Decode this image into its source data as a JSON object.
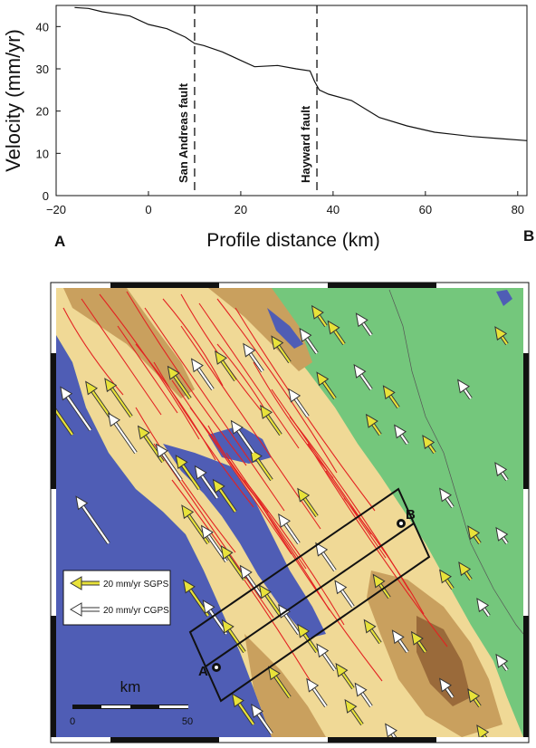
{
  "chart_data": [
    {
      "type": "line",
      "ylabel": "Velocity (mm/yr)",
      "xlabel": "Profile distance (km)",
      "xlim": [
        -20,
        82
      ],
      "ylim": [
        0,
        45
      ],
      "xticks": [
        -20,
        0,
        20,
        40,
        60,
        80
      ],
      "yticks": [
        0,
        10,
        20,
        30,
        40
      ],
      "grid": false,
      "endpoint_labels": {
        "start": "A",
        "end": "B"
      },
      "annotations": [
        {
          "x": 10,
          "text": "San Andreas fault"
        },
        {
          "x": 36.5,
          "text": "Hayward fault"
        }
      ],
      "series": [
        {
          "x": [
            -16,
            -13,
            -10,
            -4,
            0,
            4,
            8,
            10,
            12,
            16,
            20,
            23,
            28,
            32,
            35,
            36,
            37,
            39,
            44,
            50,
            56,
            62,
            66,
            70,
            76,
            82
          ],
          "values": [
            44.5,
            44.3,
            43.5,
            42.5,
            40.5,
            39.5,
            37.5,
            36,
            35.5,
            34,
            32,
            30.5,
            30.8,
            30,
            29.5,
            27,
            25,
            24,
            22.5,
            18.5,
            16.5,
            15,
            14.5,
            14,
            13.5,
            13
          ]
        }
      ]
    },
    {
      "type": "map",
      "legend": {
        "sgps_label": "20 mm/yr SGPS",
        "cgps_label": "20 mm/yr CGPS",
        "sgps_color": "#e8e23a",
        "cgps_color": "#ffffff"
      },
      "scale_bar": {
        "unit": "km",
        "min_label": "0",
        "max_label": "50"
      },
      "profile_points": {
        "start": "A",
        "end": "B"
      },
      "colors": {
        "water": "#4f5db5",
        "lowland": "#74c77c",
        "foothill": "#f0d996",
        "upland": "#c9a05e",
        "peak": "#9a6a3a",
        "fault": "#e32222"
      }
    }
  ]
}
